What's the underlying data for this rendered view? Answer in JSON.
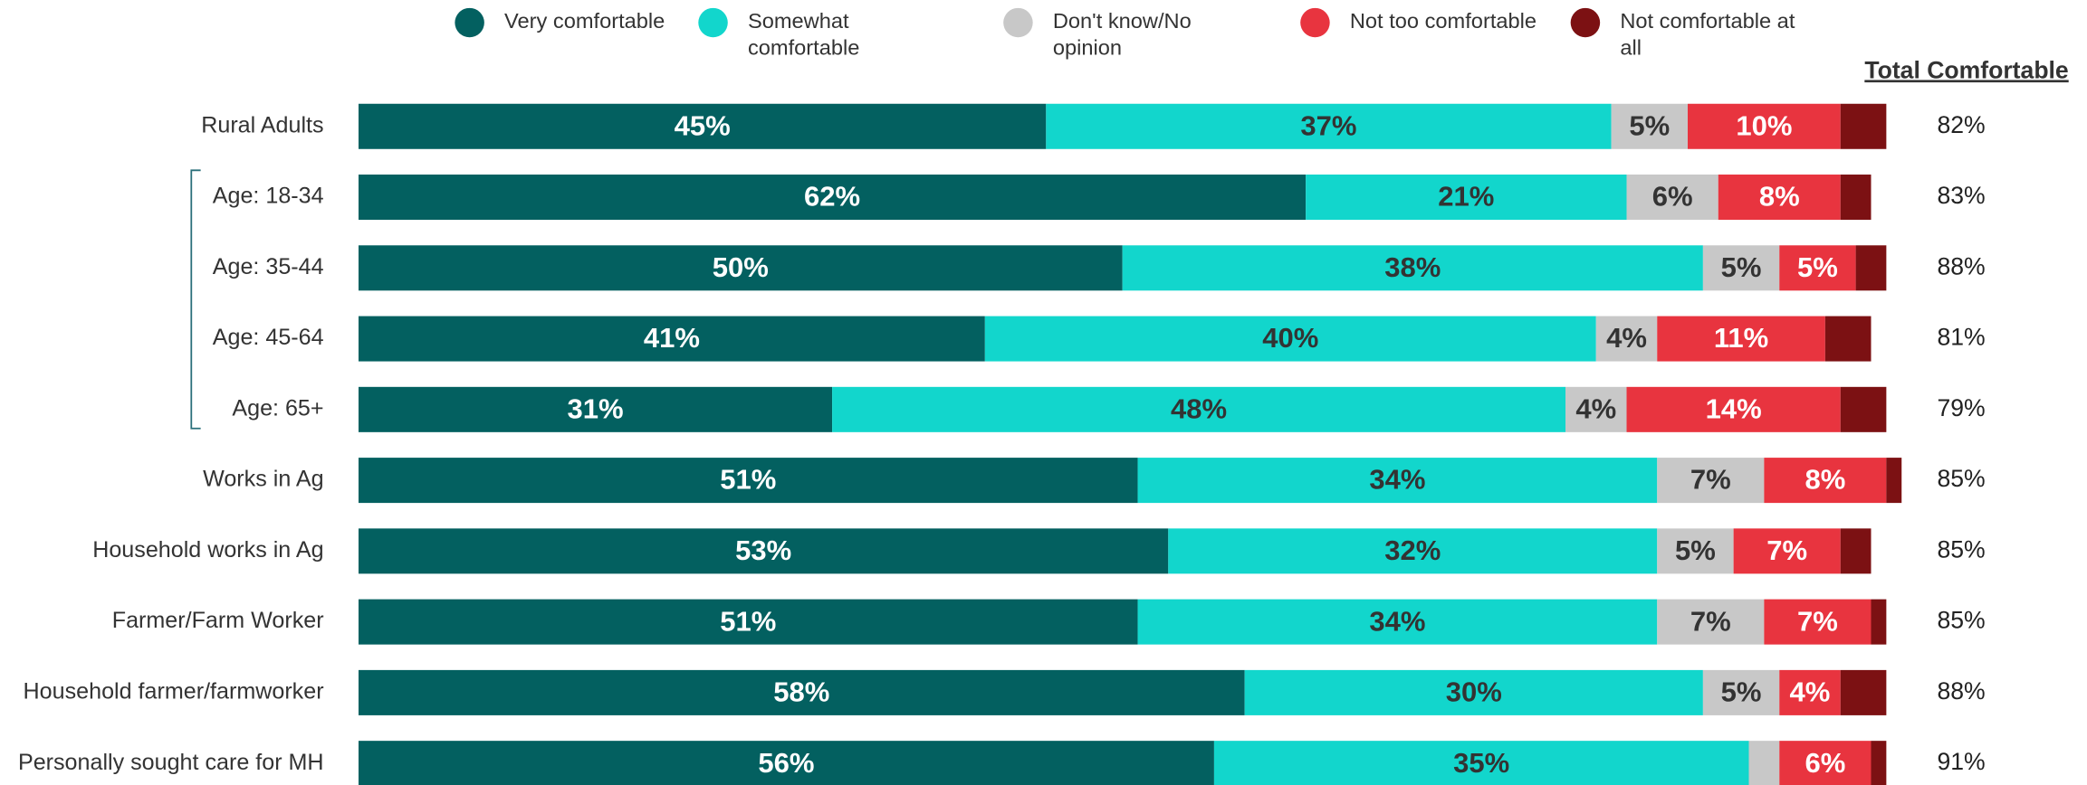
{
  "chart_data": {
    "type": "stacked-bar-horizontal",
    "categories": [
      "Rural Adults",
      "Age: 18-34",
      "Age: 35-44",
      "Age: 45-64",
      "Age: 65+",
      "Works in Ag",
      "Household works in Ag",
      "Farmer/Farm Worker",
      "Household farmer/farmworker",
      "Personally sought care for MH"
    ],
    "series": [
      {
        "name": "Very comfortable",
        "color": "#036060",
        "values": [
          45,
          62,
          50,
          41,
          31,
          51,
          53,
          51,
          58,
          56
        ],
        "value_labels": [
          "45%",
          "62%",
          "50%",
          "41%",
          "31%",
          "51%",
          "53%",
          "51%",
          "58%",
          "56%"
        ]
      },
      {
        "name": "Somewhat comfortable",
        "color": "#12d6cc",
        "values": [
          37,
          21,
          38,
          40,
          48,
          34,
          32,
          34,
          30,
          35
        ],
        "value_labels": [
          "37%",
          "21%",
          "38%",
          "40%",
          "48%",
          "34%",
          "32%",
          "34%",
          "30%",
          "35%"
        ]
      },
      {
        "name": "Don't know/No opinion",
        "color": "#c8c8c8",
        "values": [
          5,
          6,
          5,
          4,
          4,
          7,
          5,
          7,
          5,
          2
        ],
        "value_labels": [
          "5%",
          "6%",
          "5%",
          "4%",
          "4%",
          "7%",
          "5%",
          "7%",
          "5%",
          null
        ]
      },
      {
        "name": "Not too comfortable",
        "color": "#e8343f",
        "values": [
          10,
          8,
          5,
          11,
          14,
          8,
          7,
          7,
          4,
          6
        ],
        "value_labels": [
          "10%",
          "8%",
          "5%",
          "11%",
          "14%",
          "8%",
          "7%",
          "7%",
          "4%",
          "6%"
        ]
      },
      {
        "name": "Not comfortable at all",
        "color": "#7c1113",
        "values": [
          3,
          2,
          2,
          3,
          3,
          1,
          2,
          1,
          3,
          1
        ],
        "value_labels": [
          null,
          null,
          null,
          null,
          null,
          null,
          null,
          null,
          null,
          null
        ]
      }
    ],
    "xlim": [
      0,
      100
    ],
    "totals": {
      "title": "Total Comfortable",
      "values": [
        82,
        83,
        88,
        81,
        79,
        85,
        85,
        85,
        88,
        91
      ],
      "value_labels": [
        "82%",
        "83%",
        "88%",
        "81%",
        "79%",
        "85%",
        "85%",
        "85%",
        "88%",
        "91%"
      ]
    }
  }
}
